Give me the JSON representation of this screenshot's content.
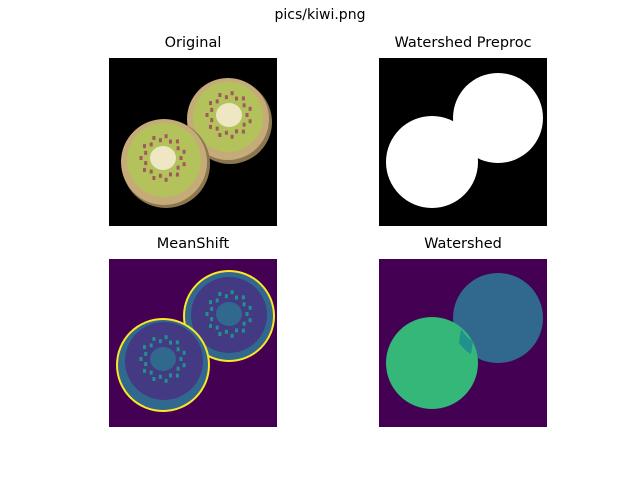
{
  "figure": {
    "suptitle": "pics/kiwi.png"
  },
  "panels": [
    {
      "title": "Original",
      "image": "kiwi-original-image"
    },
    {
      "title": "Watershed Preproc",
      "image": "binary-mask-image"
    },
    {
      "title": "MeanShift",
      "image": "meanshift-segmentation-image"
    },
    {
      "title": "Watershed",
      "image": "watershed-segmentation-image"
    }
  ],
  "colors": {
    "black": "#000000",
    "white": "#ffffff",
    "kiwi_rind": "#c4ab78",
    "kiwi_flesh": "#b3c25a",
    "kiwi_core": "#efe7c3",
    "kiwi_seed": "#a0595f",
    "viridis_dark": "#440154",
    "viridis_purple": "#443983",
    "viridis_blue": "#31688e",
    "viridis_teal": "#21918c",
    "viridis_green": "#35b779",
    "viridis_yellow": "#fde725"
  }
}
